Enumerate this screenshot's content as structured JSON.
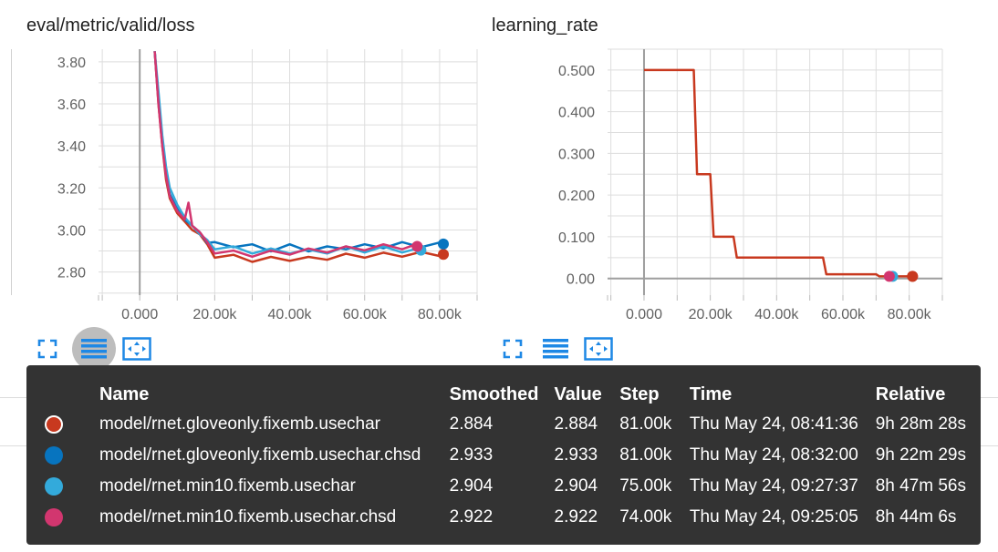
{
  "cards": [
    {
      "title": "eval/metric/valid/loss"
    },
    {
      "title": "learning_rate"
    }
  ],
  "chart_data": [
    {
      "type": "line",
      "title": "eval/metric/valid/loss",
      "xlabel": "",
      "ylabel": "",
      "xlim": [
        -11000,
        90000
      ],
      "ylim": [
        2.69,
        3.86
      ],
      "x_ticks": [
        "0.000",
        "20.00k",
        "40.00k",
        "60.00k",
        "80.00k"
      ],
      "y_ticks": [
        "3.80",
        "3.60",
        "3.40",
        "3.20",
        "3.00",
        "2.80"
      ],
      "series": [
        {
          "name": "model/rnet.gloveonly.fixemb.usechar",
          "color": "#c8391f",
          "x": [
            4000,
            5000,
            6000,
            7000,
            8000,
            10000,
            12000,
            14000,
            16000,
            18000,
            20000,
            25000,
            30000,
            35000,
            40000,
            45000,
            50000,
            55000,
            60000,
            65000,
            70000,
            75000,
            81000
          ],
          "y": [
            3.85,
            3.6,
            3.4,
            3.24,
            3.15,
            3.08,
            3.04,
            3.0,
            2.98,
            2.92,
            2.88,
            2.87,
            2.86,
            2.86,
            2.865,
            2.86,
            2.87,
            2.875,
            2.88,
            2.88,
            2.885,
            2.884,
            2.884
          ]
        },
        {
          "name": "model/rnet.gloveonly.fixemb.usechar.chsd",
          "color": "#0774bf",
          "x": [
            4000,
            5000,
            6000,
            7000,
            8000,
            10000,
            12000,
            14000,
            16000,
            18000,
            20000,
            25000,
            30000,
            35000,
            40000,
            45000,
            50000,
            55000,
            60000,
            65000,
            70000,
            75000,
            81000
          ],
          "y": [
            3.85,
            3.62,
            3.42,
            3.26,
            3.17,
            3.1,
            3.05,
            3.02,
            2.99,
            2.95,
            2.93,
            2.93,
            2.92,
            2.91,
            2.92,
            2.91,
            2.91,
            2.92,
            2.92,
            2.925,
            2.93,
            2.93,
            2.933
          ]
        },
        {
          "name": "model/rnet.min10.fixemb.usechar",
          "color": "#33aadb",
          "x": [
            4000,
            5000,
            6000,
            7000,
            8000,
            10000,
            12000,
            14000,
            16000,
            18000,
            20000,
            25000,
            30000,
            35000,
            40000,
            45000,
            50000,
            55000,
            60000,
            65000,
            70000,
            75000
          ],
          "y": [
            3.85,
            3.66,
            3.45,
            3.3,
            3.2,
            3.12,
            3.06,
            3.02,
            2.98,
            2.94,
            2.92,
            2.91,
            2.9,
            2.9,
            2.9,
            2.895,
            2.9,
            2.91,
            2.905,
            2.91,
            2.905,
            2.904
          ]
        },
        {
          "name": "model/rnet.min10.fixemb.usechar.chsd",
          "color": "#d2366f",
          "x": [
            4000,
            5000,
            6000,
            7000,
            8000,
            10000,
            12000,
            13000,
            14000,
            16000,
            18000,
            20000,
            25000,
            30000,
            35000,
            40000,
            45000,
            50000,
            55000,
            60000,
            65000,
            70000,
            74000
          ],
          "y": [
            3.85,
            3.6,
            3.4,
            3.26,
            3.16,
            3.09,
            3.05,
            3.13,
            3.02,
            2.99,
            2.93,
            2.9,
            2.89,
            2.885,
            2.89,
            2.895,
            2.9,
            2.905,
            2.91,
            2.915,
            2.92,
            2.92,
            2.922
          ]
        }
      ],
      "grid": true
    },
    {
      "type": "line",
      "title": "learning_rate",
      "xlabel": "",
      "ylabel": "",
      "xlim": [
        -11000,
        90000
      ],
      "ylim": [
        -0.04,
        0.55
      ],
      "x_ticks": [
        "0.000",
        "20.00k",
        "40.00k",
        "60.00k",
        "80.00k"
      ],
      "y_ticks": [
        "0.500",
        "0.400",
        "0.300",
        "0.200",
        "0.100",
        "0.00"
      ],
      "series": [
        {
          "name": "model/rnet.gloveonly.fixemb.usechar",
          "color": "#c8391f",
          "x": [
            0,
            15000,
            16000,
            20000,
            21000,
            27000,
            28000,
            54000,
            55000,
            70000,
            71000,
            81000
          ],
          "y": [
            0.5,
            0.5,
            0.25,
            0.25,
            0.1,
            0.1,
            0.05,
            0.05,
            0.01,
            0.01,
            0.005,
            0.005
          ]
        }
      ],
      "grid": true
    }
  ],
  "tooltip": {
    "headers": {
      "name": "Name",
      "smoothed": "Smoothed",
      "value": "Value",
      "step": "Step",
      "time": "Time",
      "relative": "Relative"
    },
    "rows": [
      {
        "color": "#c8391f",
        "name": "model/rnet.gloveonly.fixemb.usechar",
        "smoothed": "2.884",
        "value": "2.884",
        "step": "81.00k",
        "time": "Thu May 24, 08:41:36",
        "relative": "9h 28m 28s"
      },
      {
        "color": "#0774bf",
        "name": "model/rnet.gloveonly.fixemb.usechar.chsd",
        "smoothed": "2.933",
        "value": "2.933",
        "step": "81.00k",
        "time": "Thu May 24, 08:32:00",
        "relative": "9h 22m 29s"
      },
      {
        "color": "#33aadb",
        "name": "model/rnet.min10.fixemb.usechar",
        "smoothed": "2.904",
        "value": "2.904",
        "step": "75.00k",
        "time": "Thu May 24, 09:27:37",
        "relative": "8h 47m 56s"
      },
      {
        "color": "#d2366f",
        "name": "model/rnet.min10.fixemb.usechar.chsd",
        "smoothed": "2.922",
        "value": "2.922",
        "step": "74.00k",
        "time": "Thu May 24, 09:25:05",
        "relative": "8h 44m 6s"
      }
    ]
  },
  "icons": {
    "fullscreen": "fullscreen-icon",
    "log_scale": "list-lines-icon",
    "fit_domain": "fit-domain-icon"
  }
}
